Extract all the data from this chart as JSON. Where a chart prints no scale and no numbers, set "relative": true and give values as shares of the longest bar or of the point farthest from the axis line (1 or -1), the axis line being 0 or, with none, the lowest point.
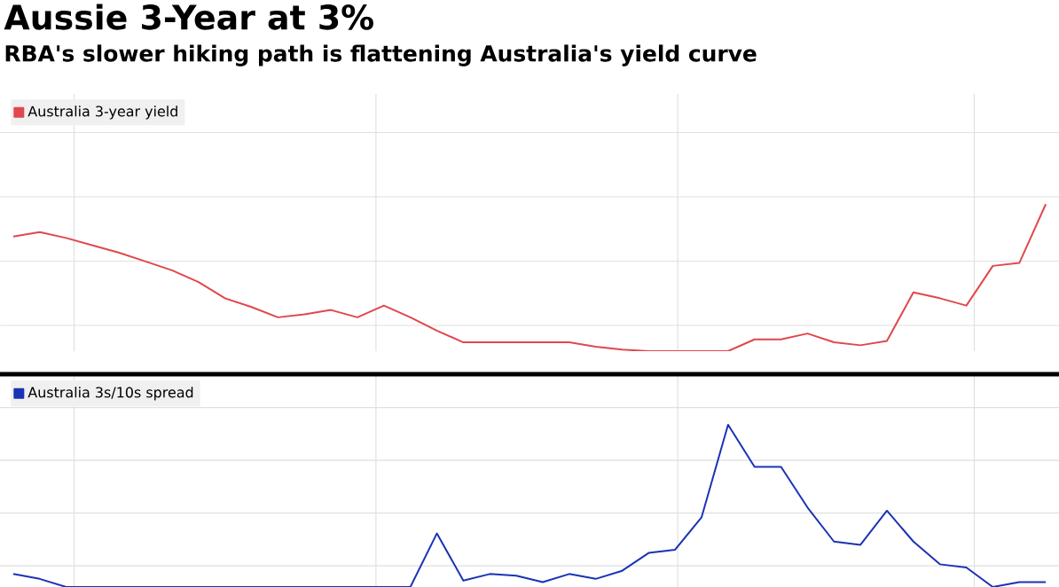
{
  "chart_data": [
    {
      "type": "line",
      "title": "Aussie 3-Year at 3%",
      "subtitle": "RBA's slower hiking path is flattening Australia's yield curve",
      "relative": true,
      "grid": true,
      "legend": "top left",
      "tick_labels": false,
      "categories": [
        null,
        null,
        null,
        null,
        null,
        null,
        null,
        null,
        null,
        null,
        null,
        null,
        null,
        null,
        null,
        null,
        null,
        null,
        null,
        null,
        null,
        null,
        null,
        null,
        null,
        null,
        null,
        null,
        null,
        null,
        null,
        null,
        null,
        null,
        null,
        null,
        null,
        null,
        null,
        null
      ],
      "series": [
        {
          "name": "Australia 3-year yield",
          "color": "#e0474c",
          "values": [
            0.78,
            0.81,
            0.77,
            0.72,
            0.67,
            0.61,
            0.55,
            0.47,
            0.36,
            0.3,
            0.23,
            0.25,
            0.28,
            0.23,
            0.31,
            0.23,
            0.14,
            0.06,
            0.06,
            0.06,
            0.06,
            0.06,
            0.03,
            0.01,
            0,
            0,
            0,
            0,
            0.08,
            0.08,
            0.12,
            0.06,
            0.04,
            0.07,
            0.4,
            0.36,
            0.31,
            0.58,
            0.6,
            1
          ]
        }
      ]
    },
    {
      "type": "line",
      "relative": true,
      "grid": true,
      "legend": "top left",
      "tick_labels": false,
      "categories": [
        null,
        null,
        null,
        null,
        null,
        null,
        null,
        null,
        null,
        null,
        null,
        null,
        null,
        null,
        null,
        null,
        null,
        null,
        null,
        null,
        null,
        null,
        null,
        null,
        null,
        null,
        null,
        null,
        null,
        null,
        null,
        null,
        null,
        null,
        null,
        null,
        null,
        null,
        null,
        null
      ],
      "series": [
        {
          "name": "Australia 3s/10s spread",
          "color": "#1a33b5",
          "values": [
            0.08,
            0.05,
            0,
            0,
            0,
            0,
            0,
            0,
            0,
            0,
            0,
            0,
            0,
            0,
            0,
            0,
            0.33,
            0.04,
            0.08,
            0.07,
            0.03,
            0.08,
            0.05,
            0.1,
            0.21,
            0.23,
            0.43,
            1,
            0.74,
            0.74,
            0.49,
            0.28,
            0.26,
            0.47,
            0.28,
            0.14,
            0.12,
            0,
            0.03,
            0.03
          ]
        }
      ]
    }
  ]
}
